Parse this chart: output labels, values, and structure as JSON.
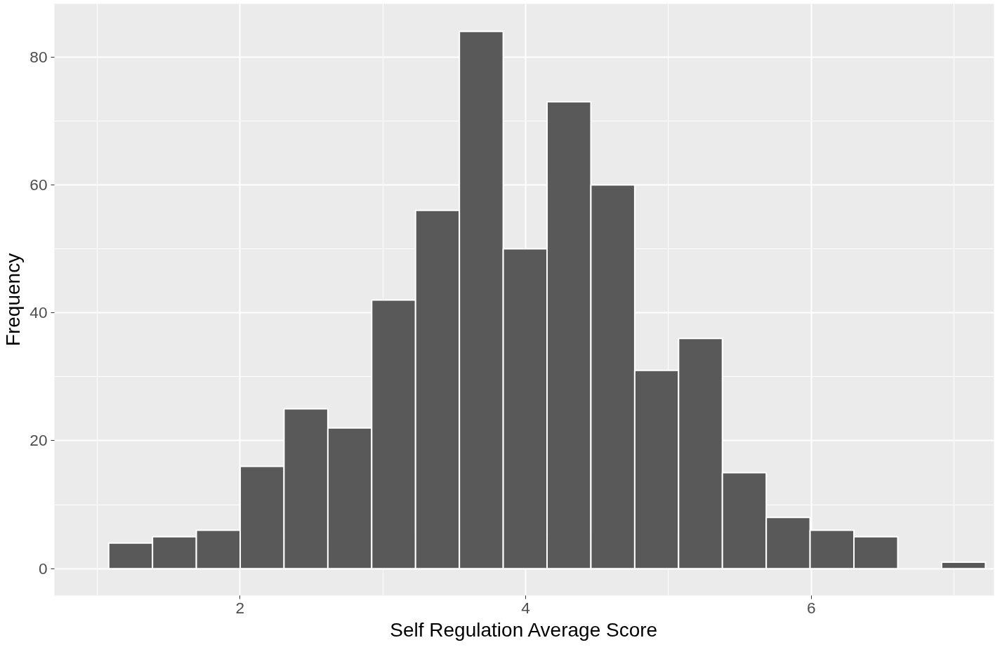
{
  "chart_data": {
    "type": "histogram",
    "xlabel": "Self Regulation Average Score",
    "ylabel": "Frequency",
    "bins": [
      1.08,
      1.387,
      1.694,
      2.001,
      2.308,
      2.615,
      2.922,
      3.229,
      3.536,
      3.843,
      4.15,
      4.457,
      4.764,
      5.071,
      5.378,
      5.685,
      5.992,
      6.299,
      6.606,
      6.913,
      7.22
    ],
    "values": [
      4,
      5,
      6,
      16,
      25,
      22,
      42,
      56,
      84,
      50,
      73,
      60,
      31,
      36,
      15,
      8,
      6,
      5,
      0,
      1
    ],
    "color": "#595959",
    "xlim": [
      0.7,
      7.28
    ],
    "ylim": [
      -4.2,
      88.3
    ],
    "xticks": [
      2,
      4,
      6
    ],
    "yticks": [
      0,
      20,
      40,
      60,
      80
    ],
    "grid": true
  }
}
